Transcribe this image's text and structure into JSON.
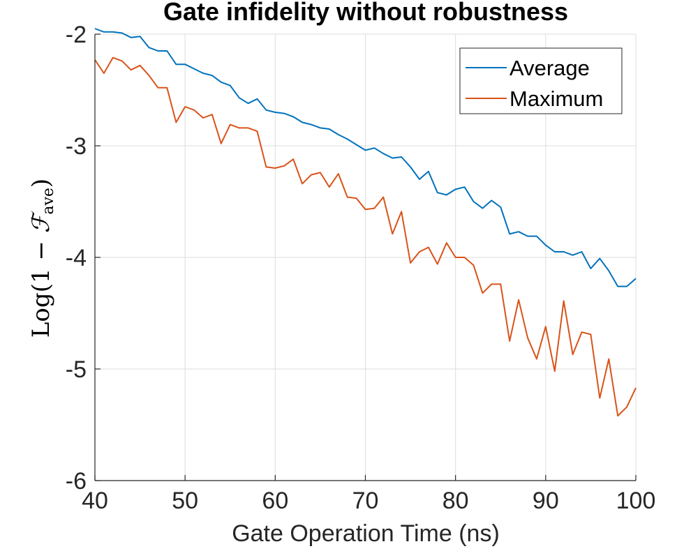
{
  "chart_data": {
    "type": "line",
    "title": "Gate infidelity without robustness",
    "xlabel": "Gate Operation Time (ns)",
    "ylabel": {
      "prefix": "Log(1 − ",
      "symbol": "ℱ",
      "subscript": "ave",
      "suffix": ")"
    },
    "xlim": [
      40,
      100
    ],
    "ylim": [
      -6,
      -2
    ],
    "xticks": [
      40,
      50,
      60,
      70,
      80,
      90,
      100
    ],
    "yticks": [
      -2,
      -3,
      -4,
      -5,
      -6
    ],
    "xtick_labels": [
      "40",
      "50",
      "60",
      "70",
      "80",
      "90",
      "100"
    ],
    "ytick_labels": [
      "-2",
      "-3",
      "-4",
      "-5",
      "-6"
    ],
    "grid": true,
    "legend_position": "top-right",
    "x": [
      40,
      41,
      42,
      43,
      44,
      45,
      46,
      47,
      48,
      49,
      50,
      51,
      52,
      53,
      54,
      55,
      56,
      57,
      58,
      59,
      60,
      61,
      62,
      63,
      64,
      65,
      66,
      67,
      68,
      69,
      70,
      71,
      72,
      73,
      74,
      75,
      76,
      77,
      78,
      79,
      80,
      81,
      82,
      83,
      84,
      85,
      86,
      87,
      88,
      89,
      90,
      91,
      92,
      93,
      94,
      95,
      96,
      97,
      98,
      99,
      100
    ],
    "series": [
      {
        "name": "Average",
        "color": "#0072BD",
        "values": [
          -1.95,
          -1.98,
          -1.98,
          -1.99,
          -2.03,
          -2.02,
          -2.12,
          -2.15,
          -2.15,
          -2.27,
          -2.27,
          -2.31,
          -2.35,
          -2.37,
          -2.43,
          -2.46,
          -2.57,
          -2.62,
          -2.58,
          -2.68,
          -2.7,
          -2.71,
          -2.74,
          -2.79,
          -2.81,
          -2.84,
          -2.85,
          -2.9,
          -2.94,
          -2.99,
          -3.04,
          -3.02,
          -3.07,
          -3.11,
          -3.1,
          -3.19,
          -3.3,
          -3.23,
          -3.42,
          -3.44,
          -3.39,
          -3.37,
          -3.5,
          -3.56,
          -3.49,
          -3.55,
          -3.79,
          -3.77,
          -3.81,
          -3.81,
          -3.89,
          -3.95,
          -3.95,
          -3.98,
          -3.95,
          -4.1,
          -4.01,
          -4.12,
          -4.26,
          -4.26,
          -4.19
        ]
      },
      {
        "name": "Maximum",
        "color": "#D95319",
        "values": [
          -2.23,
          -2.35,
          -2.21,
          -2.24,
          -2.32,
          -2.28,
          -2.37,
          -2.48,
          -2.48,
          -2.79,
          -2.65,
          -2.68,
          -2.75,
          -2.72,
          -2.98,
          -2.81,
          -2.84,
          -2.84,
          -2.87,
          -3.19,
          -3.2,
          -3.18,
          -3.12,
          -3.34,
          -3.26,
          -3.24,
          -3.37,
          -3.25,
          -3.46,
          -3.47,
          -3.57,
          -3.56,
          -3.46,
          -3.79,
          -3.59,
          -4.05,
          -3.95,
          -3.91,
          -4.06,
          -3.87,
          -4.0,
          -4.0,
          -4.07,
          -4.32,
          -4.24,
          -4.24,
          -4.75,
          -4.38,
          -4.72,
          -4.91,
          -4.62,
          -5.02,
          -4.39,
          -4.87,
          -4.67,
          -4.69,
          -5.26,
          -4.91,
          -5.42,
          -5.34,
          -5.17
        ]
      }
    ]
  }
}
